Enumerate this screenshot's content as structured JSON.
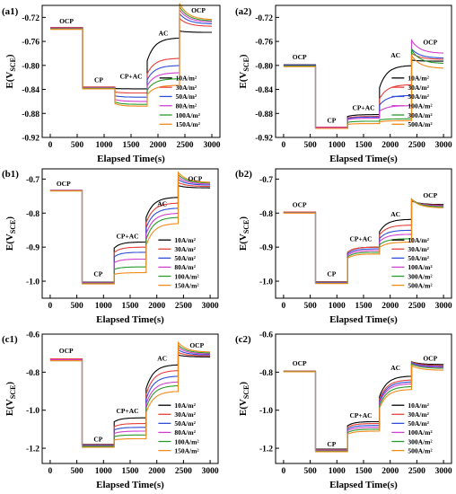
{
  "figure": {
    "x_title": "Elapsed Time(s)",
    "y_title_main": "E(V",
    "y_title_sub": "SCE",
    "y_title_end": ")"
  },
  "chart_data": [
    {
      "id": "a1",
      "type": "line",
      "panel_label": "(a1)",
      "xlim": [
        -150,
        3150
      ],
      "ylim": [
        -0.92,
        -0.7
      ],
      "xticks": [
        0,
        500,
        1000,
        1500,
        2000,
        2500,
        3000
      ],
      "yticks": [
        -0.92,
        -0.88,
        -0.84,
        -0.8,
        -0.76,
        -0.72
      ],
      "ytick_labels": [
        "-0.92",
        "-0.88",
        "-0.84",
        "-0.80",
        "-0.76",
        "-0.72"
      ],
      "xlabel": "Elapsed Time(s)",
      "ylabel": "E(VSCE)",
      "phase_labels": [
        {
          "text": "OCP",
          "x": 300,
          "y": -0.73
        },
        {
          "text": "CP",
          "x": 900,
          "y": -0.828
        },
        {
          "text": "CP+AC",
          "x": 1500,
          "y": -0.822
        },
        {
          "text": "AC",
          "x": 2100,
          "y": -0.75
        },
        {
          "text": "OCP",
          "x": 2750,
          "y": -0.712
        }
      ],
      "legend_position": "right",
      "series": [
        {
          "name": "10A/m²",
          "color": "#000000",
          "ocp": -0.737,
          "cp": -0.836,
          "cpac": -0.839,
          "ac": -0.754,
          "ocp2": -0.745
        },
        {
          "name": "30A/m²",
          "color": "#e8403a",
          "ocp": -0.737,
          "cp": -0.836,
          "cpac": -0.846,
          "ac": -0.788,
          "ocp2": -0.735
        },
        {
          "name": "50A/m²",
          "color": "#2f4fd8",
          "ocp": -0.738,
          "cp": -0.837,
          "cpac": -0.853,
          "ac": -0.8,
          "ocp2": -0.731
        },
        {
          "name": "80A/m²",
          "color": "#d040d0",
          "ocp": -0.738,
          "cp": -0.837,
          "cpac": -0.86,
          "ac": -0.812,
          "ocp2": -0.728
        },
        {
          "name": "100A/m²",
          "color": "#2b9a2b",
          "ocp": -0.739,
          "cp": -0.838,
          "cpac": -0.865,
          "ac": -0.822,
          "ocp2": -0.726
        },
        {
          "name": "150A/m²",
          "color": "#f28a1a",
          "ocp": -0.74,
          "cp": -0.839,
          "cpac": -0.868,
          "ac": -0.833,
          "ocp2": -0.724
        }
      ]
    },
    {
      "id": "a2",
      "type": "line",
      "panel_label": "(a2)",
      "xlim": [
        -150,
        3150
      ],
      "ylim": [
        -0.92,
        -0.7
      ],
      "xticks": [
        0,
        500,
        1000,
        1500,
        2000,
        2500,
        3000
      ],
      "yticks": [
        -0.92,
        -0.88,
        -0.84,
        -0.8,
        -0.76,
        -0.72
      ],
      "ytick_labels": [
        "-0.92",
        "-0.88",
        "-0.84",
        "-0.80",
        "-0.76",
        "-0.72"
      ],
      "xlabel": "Elapsed Time(s)",
      "ylabel": "E(VSCE)",
      "phase_labels": [
        {
          "text": "OCP",
          "x": 300,
          "y": -0.79
        },
        {
          "text": "CP",
          "x": 900,
          "y": -0.895
        },
        {
          "text": "CP+AC",
          "x": 1500,
          "y": -0.874
        },
        {
          "text": "AC",
          "x": 2100,
          "y": -0.787
        },
        {
          "text": "OCP",
          "x": 2750,
          "y": -0.765
        }
      ],
      "legend_position": "right",
      "series": [
        {
          "name": "10A/m²",
          "color": "#000000",
          "ocp": -0.799,
          "cp": -0.903,
          "cpac": -0.882,
          "ac": -0.8,
          "ocp2": -0.793
        },
        {
          "name": "30A/m²",
          "color": "#e8403a",
          "ocp": -0.8,
          "cp": -0.903,
          "cpac": -0.885,
          "ac": -0.832,
          "ocp2": -0.79
        },
        {
          "name": "50A/m²",
          "color": "#2f4fd8",
          "ocp": -0.8,
          "cp": -0.904,
          "cpac": -0.886,
          "ac": -0.85,
          "ocp2": -0.788
        },
        {
          "name": "100A/m²",
          "color": "#d040d0",
          "ocp": -0.801,
          "cp": -0.904,
          "cpac": -0.888,
          "ac": -0.867,
          "ocp2": -0.78
        },
        {
          "name": "300A/m²",
          "color": "#2b9a2b",
          "ocp": -0.801,
          "cp": -0.905,
          "cpac": -0.893,
          "ac": -0.889,
          "ocp2": -0.797
        },
        {
          "name": "500A/m²",
          "color": "#f28a1a",
          "ocp": -0.802,
          "cp": -0.905,
          "cpac": -0.897,
          "ac": -0.892,
          "ocp2": -0.805
        }
      ]
    },
    {
      "id": "b1",
      "type": "line",
      "panel_label": "(b1)",
      "xlim": [
        -150,
        3150
      ],
      "ylim": [
        -1.05,
        -0.67
      ],
      "xticks": [
        0,
        500,
        1000,
        1500,
        2000,
        2500,
        3000
      ],
      "yticks": [
        -1.0,
        -0.9,
        -0.8,
        -0.7
      ],
      "ytick_labels": [
        "-1.0",
        "-0.9",
        "-0.8",
        "-0.7"
      ],
      "xlabel": "Elapsed Time(s)",
      "ylabel": "E(VSCE)",
      "phase_labels": [
        {
          "text": "OCP",
          "x": 250,
          "y": -0.72
        },
        {
          "text": "CP",
          "x": 900,
          "y": -0.985
        },
        {
          "text": "CP+AC",
          "x": 1450,
          "y": -0.875
        },
        {
          "text": "AC",
          "x": 2100,
          "y": -0.78
        },
        {
          "text": "OCP",
          "x": 2720,
          "y": -0.705
        }
      ],
      "legend_position": "right",
      "series": [
        {
          "name": "10A/m²",
          "color": "#000000",
          "ocp": -0.733,
          "cp": -1.003,
          "cpac": -0.885,
          "ac": -0.753,
          "ocp2": -0.726
        },
        {
          "name": "30A/m²",
          "color": "#e8403a",
          "ocp": -0.733,
          "cp": -1.004,
          "cpac": -0.9,
          "ac": -0.77,
          "ocp2": -0.722
        },
        {
          "name": "50A/m²",
          "color": "#2f4fd8",
          "ocp": -0.734,
          "cp": -1.005,
          "cpac": -0.915,
          "ac": -0.785,
          "ocp2": -0.718
        },
        {
          "name": "80A/m²",
          "color": "#d040d0",
          "ocp": -0.734,
          "cp": -1.006,
          "cpac": -0.935,
          "ac": -0.8,
          "ocp2": -0.715
        },
        {
          "name": "100A/m²",
          "color": "#2b9a2b",
          "ocp": -0.735,
          "cp": -1.007,
          "cpac": -0.958,
          "ac": -0.812,
          "ocp2": -0.712
        },
        {
          "name": "150A/m²",
          "color": "#f28a1a",
          "ocp": -0.735,
          "cp": -1.008,
          "cpac": -0.975,
          "ac": -0.83,
          "ocp2": -0.71
        }
      ]
    },
    {
      "id": "b2",
      "type": "line",
      "panel_label": "(b2)",
      "xlim": [
        -150,
        3150
      ],
      "ylim": [
        -1.05,
        -0.67
      ],
      "xticks": [
        0,
        500,
        1000,
        1500,
        2000,
        2500,
        3000
      ],
      "yticks": [
        -1.0,
        -0.9,
        -0.8,
        -0.7
      ],
      "ytick_labels": [
        "-1.0",
        "-0.9",
        "-0.8",
        "-0.7"
      ],
      "xlabel": "Elapsed Time(s)",
      "ylabel": "E(VSCE)",
      "phase_labels": [
        {
          "text": "OCP",
          "x": 300,
          "y": -0.782
        },
        {
          "text": "CP",
          "x": 900,
          "y": -0.985
        },
        {
          "text": "CP+AC",
          "x": 1450,
          "y": -0.882
        },
        {
          "text": "AC",
          "x": 2100,
          "y": -0.81
        },
        {
          "text": "OCP",
          "x": 2750,
          "y": -0.755
        }
      ],
      "legend_position": "right",
      "series": [
        {
          "name": "10A/m²",
          "color": "#000000",
          "ocp": -0.797,
          "cp": -1.002,
          "cpac": -0.9,
          "ac": -0.818,
          "ocp2": -0.775
        },
        {
          "name": "30A/m²",
          "color": "#e8403a",
          "ocp": -0.797,
          "cp": -1.003,
          "cpac": -0.9,
          "ac": -0.835,
          "ocp2": -0.777
        },
        {
          "name": "50A/m²",
          "color": "#2f4fd8",
          "ocp": -0.798,
          "cp": -1.004,
          "cpac": -0.905,
          "ac": -0.85,
          "ocp2": -0.779
        },
        {
          "name": "100A/m²",
          "color": "#d040d0",
          "ocp": -0.798,
          "cp": -1.005,
          "cpac": -0.91,
          "ac": -0.862,
          "ocp2": -0.78
        },
        {
          "name": "300A/m²",
          "color": "#2b9a2b",
          "ocp": -0.799,
          "cp": -1.006,
          "cpac": -0.915,
          "ac": -0.875,
          "ocp2": -0.782
        },
        {
          "name": "500A/m²",
          "color": "#f28a1a",
          "ocp": -0.8,
          "cp": -1.007,
          "cpac": -0.92,
          "ac": -0.885,
          "ocp2": -0.785
        }
      ]
    },
    {
      "id": "c1",
      "type": "line",
      "panel_label": "(c1)",
      "xlim": [
        -150,
        3150
      ],
      "ylim": [
        -1.28,
        -0.6
      ],
      "xticks": [
        0,
        500,
        1000,
        1500,
        2000,
        2500,
        3000
      ],
      "yticks": [
        -1.2,
        -1.0,
        -0.8,
        -0.6
      ],
      "ytick_labels": [
        "-1.2",
        "-1.0",
        "-0.8",
        "-0.6"
      ],
      "xlabel": "Elapsed Time(s)",
      "ylabel": "E(VSCE)",
      "phase_labels": [
        {
          "text": "OCP",
          "x": 300,
          "y": -0.7
        },
        {
          "text": "CP",
          "x": 900,
          "y": -1.165
        },
        {
          "text": "CP+AC",
          "x": 1450,
          "y": -1.015
        },
        {
          "text": "AC",
          "x": 2100,
          "y": -0.74
        },
        {
          "text": "OCP",
          "x": 2750,
          "y": -0.67
        }
      ],
      "legend_position": "right",
      "series": [
        {
          "name": "10A/m²",
          "color": "#000000",
          "ocp": -0.73,
          "cp": -1.18,
          "cpac": -1.04,
          "ac": -0.76,
          "ocp2": -0.72
        },
        {
          "name": "30A/m²",
          "color": "#e8403a",
          "ocp": -0.73,
          "cp": -1.182,
          "cpac": -1.07,
          "ac": -0.79,
          "ocp2": -0.715
        },
        {
          "name": "50A/m²",
          "color": "#2f4fd8",
          "ocp": -0.735,
          "cp": -1.185,
          "cpac": -1.09,
          "ac": -0.82,
          "ocp2": -0.71
        },
        {
          "name": "80A/m²",
          "color": "#d040d0",
          "ocp": -0.735,
          "cp": -1.188,
          "cpac": -1.11,
          "ac": -0.85,
          "ocp2": -0.705
        },
        {
          "name": "100A/m²",
          "color": "#2b9a2b",
          "ocp": -0.74,
          "cp": -1.19,
          "cpac": -1.13,
          "ac": -0.87,
          "ocp2": -0.7
        },
        {
          "name": "150A/m²",
          "color": "#f28a1a",
          "ocp": -0.74,
          "cp": -1.195,
          "cpac": -1.15,
          "ac": -0.9,
          "ocp2": -0.695
        }
      ]
    },
    {
      "id": "c2",
      "type": "line",
      "panel_label": "(c2)",
      "xlim": [
        -150,
        3150
      ],
      "ylim": [
        -1.28,
        -0.6
      ],
      "xticks": [
        0,
        500,
        1000,
        1500,
        2000,
        2500,
        3000
      ],
      "yticks": [
        -1.2,
        -1.0,
        -0.8,
        -0.6
      ],
      "ytick_labels": [
        "-1.2",
        "-1.0",
        "-0.8",
        "-0.6"
      ],
      "xlabel": "Elapsed Time(s)",
      "ylabel": "E(VSCE)",
      "phase_labels": [
        {
          "text": "OCP",
          "x": 300,
          "y": -0.765
        },
        {
          "text": "CP",
          "x": 900,
          "y": -1.19
        },
        {
          "text": "CP+AC",
          "x": 1450,
          "y": -1.04
        },
        {
          "text": "AC",
          "x": 2100,
          "y": -0.79
        },
        {
          "text": "OCP",
          "x": 2750,
          "y": -0.74
        }
      ],
      "legend_position": "right",
      "series": [
        {
          "name": "10A/m²",
          "color": "#000000",
          "ocp": -0.795,
          "cp": -1.205,
          "cpac": -1.06,
          "ac": -0.82,
          "ocp2": -0.76
        },
        {
          "name": "30A/m²",
          "color": "#e8403a",
          "ocp": -0.795,
          "cp": -1.207,
          "cpac": -1.07,
          "ac": -0.84,
          "ocp2": -0.765
        },
        {
          "name": "50A/m²",
          "color": "#2f4fd8",
          "ocp": -0.796,
          "cp": -1.21,
          "cpac": -1.08,
          "ac": -0.85,
          "ocp2": -0.77
        },
        {
          "name": "100A/m²",
          "color": "#d040d0",
          "ocp": -0.796,
          "cp": -1.212,
          "cpac": -1.09,
          "ac": -0.86,
          "ocp2": -0.775
        },
        {
          "name": "300A/m²",
          "color": "#2b9a2b",
          "ocp": -0.797,
          "cp": -1.215,
          "cpac": -1.1,
          "ac": -0.875,
          "ocp2": -0.78
        },
        {
          "name": "500A/m²",
          "color": "#f28a1a",
          "ocp": -0.798,
          "cp": -1.218,
          "cpac": -1.11,
          "ac": -0.89,
          "ocp2": -0.79
        }
      ]
    }
  ]
}
